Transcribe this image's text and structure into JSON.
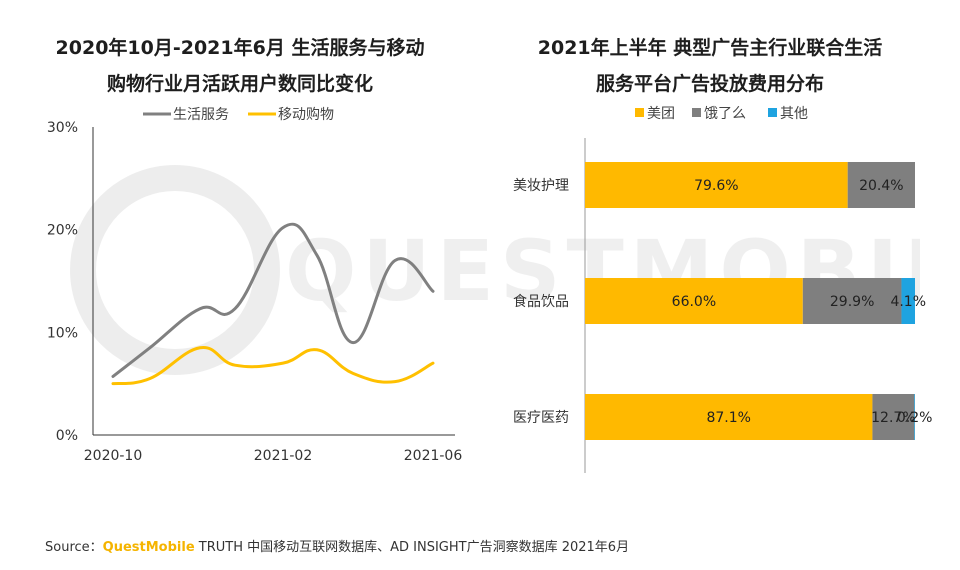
{
  "source": {
    "prefix": "Source：",
    "brand": "QuestMobile",
    "text": " TRUTH 中国移动互联网数据库、AD INSIGHT广告洞察数据库 2021年6月"
  },
  "watermark": {
    "text": "QUESTMOBILE"
  },
  "colors": {
    "grey_line": "#808080",
    "yellow": "#ffc000",
    "meituan": "#ffb900",
    "eleme": "#7f7f7f",
    "other": "#1fa3e0",
    "axis": "#333333"
  },
  "chart_data": [
    {
      "type": "line",
      "title_line1": "2020年10月-2021年6月 生活服务与移动",
      "title_line2": "购物行业月活跃用户数同比变化",
      "x": [
        "2020-10",
        "2020-11",
        "2020-12",
        "2021-01",
        "2021-02",
        "2021-03",
        "2021-04",
        "2021-05",
        "2021-06"
      ],
      "x_tick_labels": [
        "2020-10",
        "2021-02",
        "2021-06"
      ],
      "y_tick_labels": [
        "30%",
        "20%",
        "10%",
        "0%"
      ],
      "ylim": [
        0,
        30
      ],
      "legend_position": "top",
      "series": [
        {
          "name": "生活服务",
          "values": [
            5.7,
            8.5,
            12.3,
            12.3,
            20.2,
            17.5,
            9.0,
            17.0,
            14.0
          ]
        },
        {
          "name": "移动购物",
          "values": [
            5.0,
            5.5,
            8.5,
            6.8,
            7.0,
            8.3,
            6.0,
            5.2,
            7.0
          ]
        }
      ]
    },
    {
      "type": "bar",
      "orientation": "horizontal",
      "stacked": true,
      "title_line1": "2021年上半年 典型广告主行业联合生活",
      "title_line2": "服务平台广告投放费用分布",
      "categories": [
        "美妆护理",
        "食品饮品",
        "医疗医药"
      ],
      "xlim": [
        0,
        100
      ],
      "legend_position": "top",
      "series": [
        {
          "name": "美团",
          "values": [
            79.6,
            66.0,
            87.1
          ],
          "labels": [
            "79.6%",
            "66.0%",
            "87.1%"
          ]
        },
        {
          "name": "饿了么",
          "values": [
            20.4,
            29.9,
            12.7
          ],
          "labels": [
            "20.4%",
            "29.9%",
            "12.7%"
          ]
        },
        {
          "name": "其他",
          "values": [
            0,
            4.1,
            0.2
          ],
          "labels": [
            "",
            "4.1%",
            "0.2%"
          ]
        }
      ]
    }
  ]
}
